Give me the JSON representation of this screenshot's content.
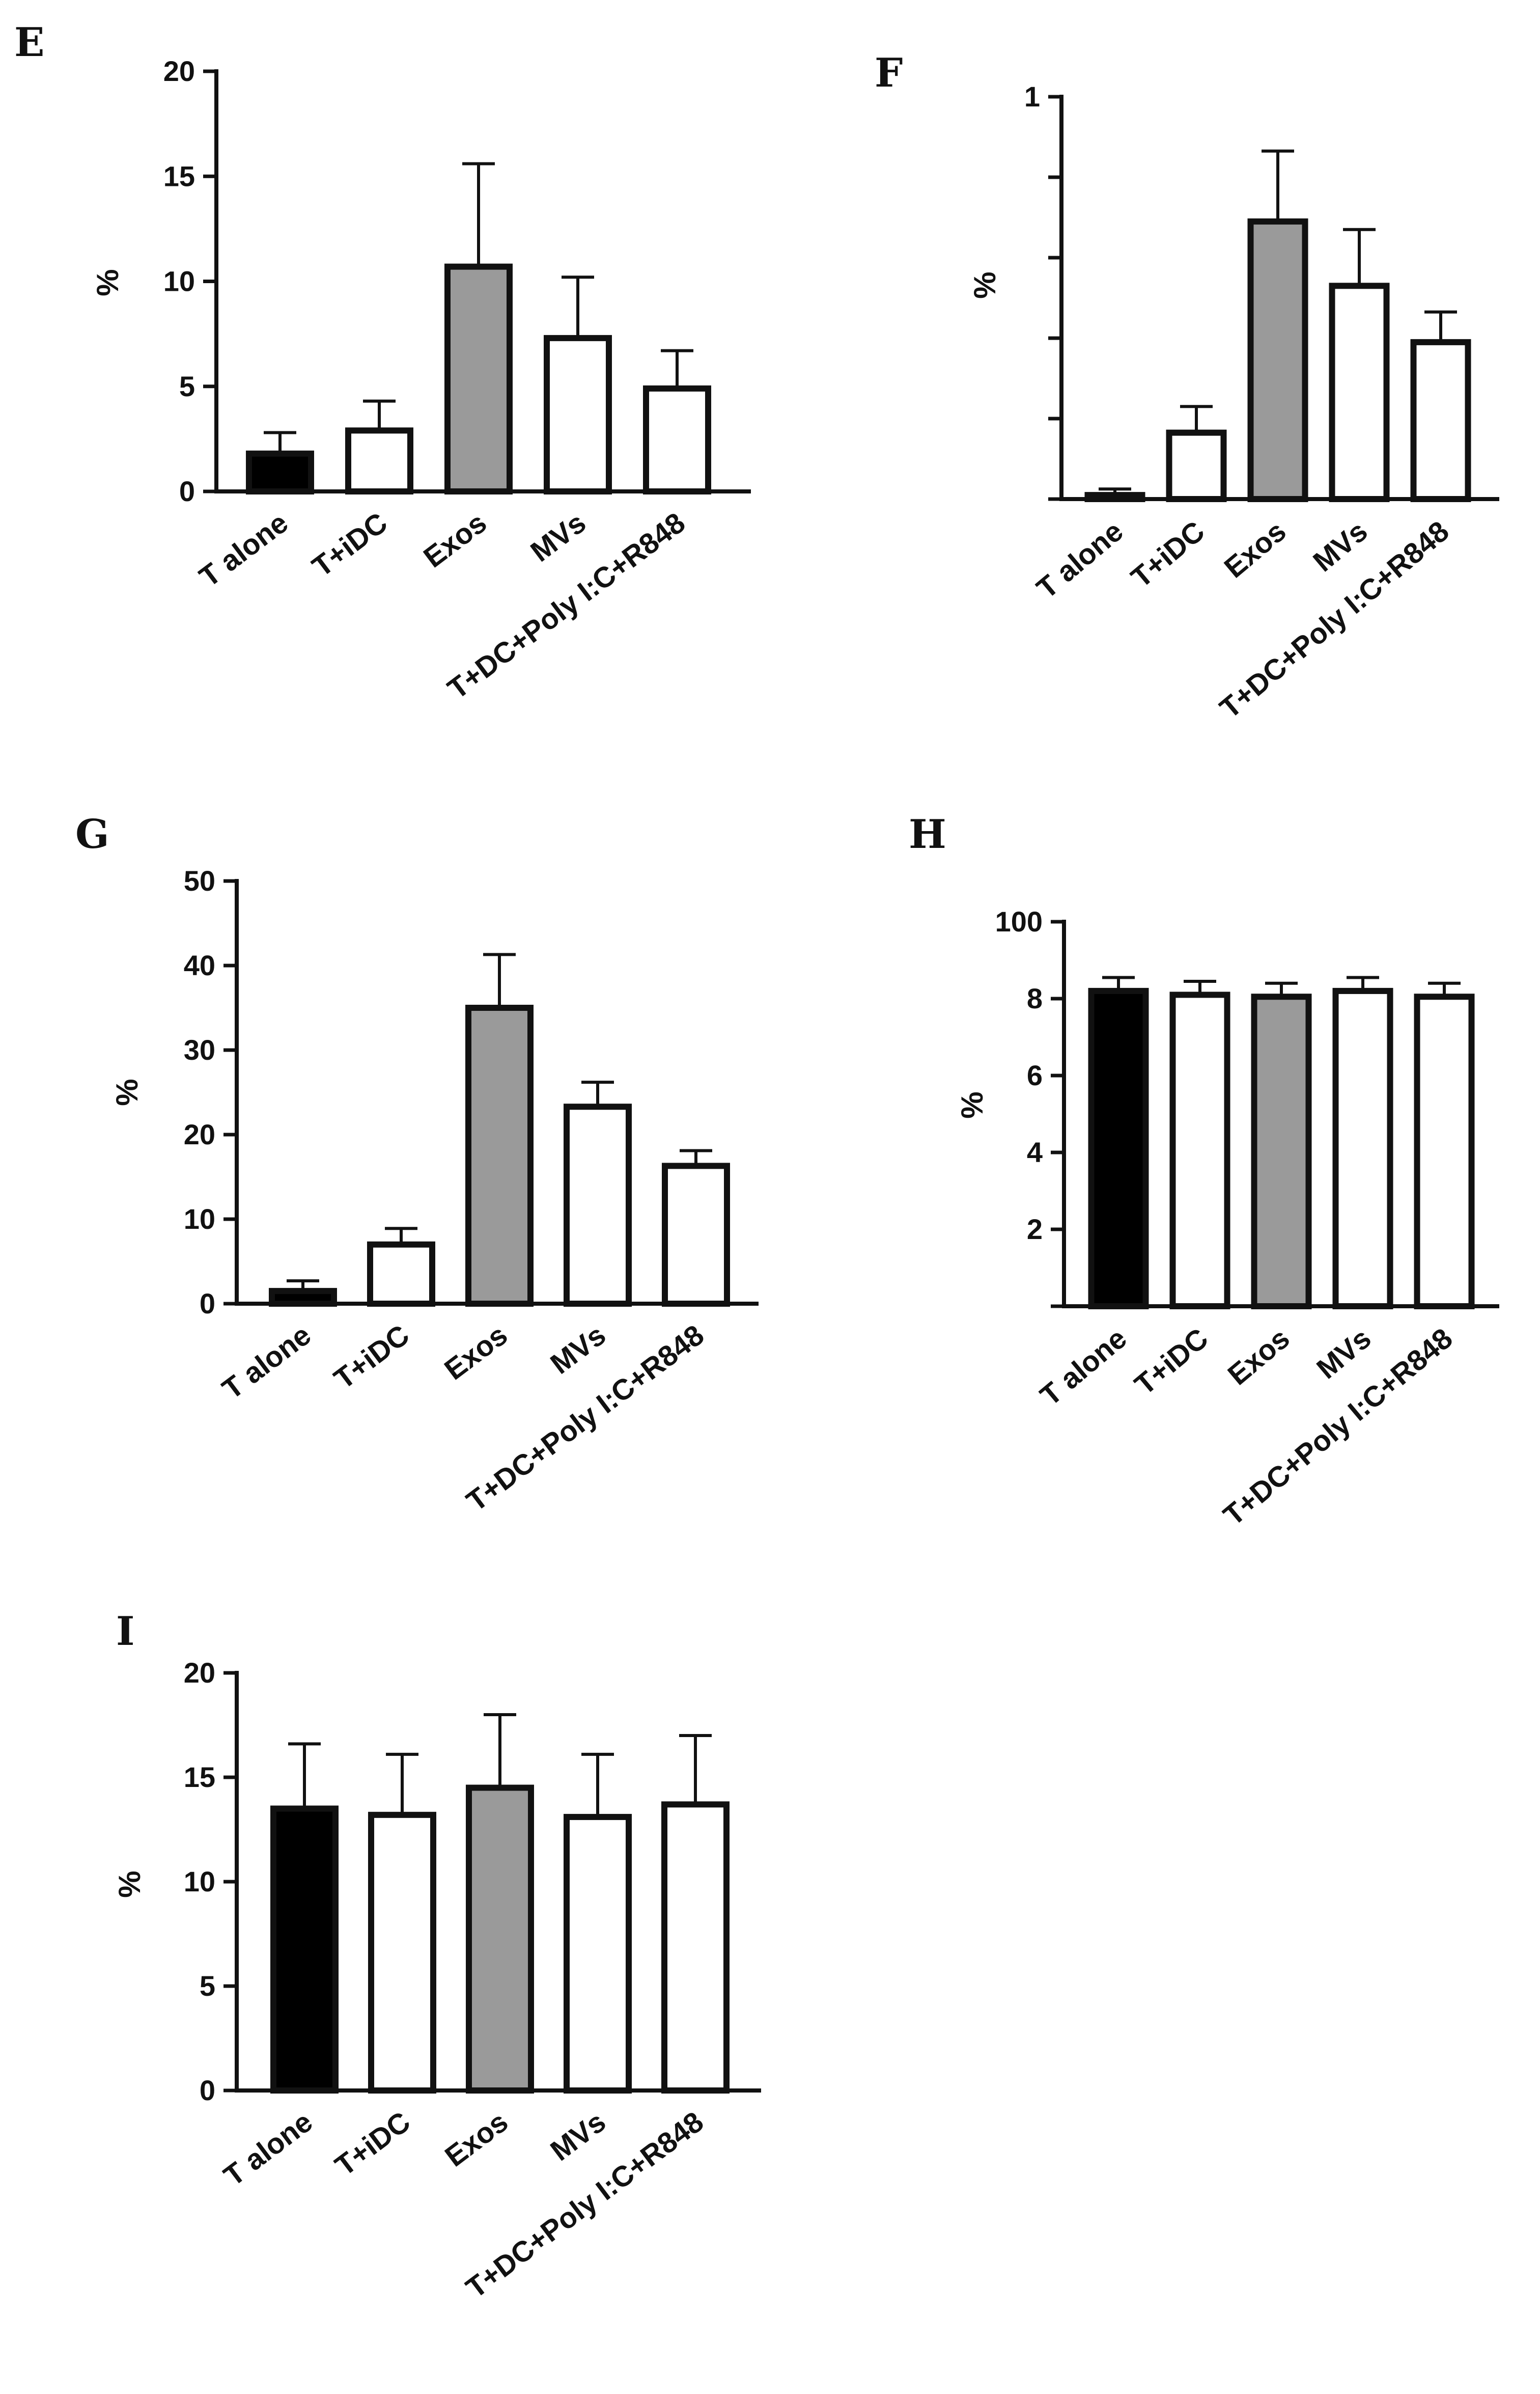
{
  "chart_data": [
    {
      "panel": "E",
      "type": "bar",
      "ylabel": "%",
      "ylim": [
        0,
        20
      ],
      "yticks": [
        "0",
        "5",
        "10",
        "15",
        "20"
      ],
      "categories": [
        "T alone",
        "T+iDC",
        "Exos",
        "MVs",
        "T+DC+Poly I:C+R848"
      ],
      "values": [
        1.8,
        2.9,
        10.7,
        7.3,
        4.9
      ],
      "errors": [
        1.0,
        1.4,
        4.9,
        2.9,
        1.8
      ],
      "fills": [
        "#000000",
        "#ffffff",
        "#9a9a9a",
        "#ffffff",
        "#ffffff"
      ]
    },
    {
      "panel": "F",
      "type": "bar",
      "ylabel": "%",
      "ylim": [
        0,
        1
      ],
      "yticks": [
        "",
        "",
        "",
        "",
        "",
        "1"
      ],
      "categories": [
        "T alone",
        "T+iDC",
        "Exos",
        "MVs",
        "T+DC+Poly I:C+R848"
      ],
      "values": [
        0.01,
        0.165,
        0.69,
        0.53,
        0.39
      ],
      "errors": [
        0.015,
        0.065,
        0.175,
        0.14,
        0.075
      ],
      "fills": [
        "#ffffff",
        "#ffffff",
        "#9a9a9a",
        "#ffffff",
        "#ffffff"
      ]
    },
    {
      "panel": "G",
      "type": "bar",
      "ylabel": "%",
      "ylim": [
        0,
        50
      ],
      "yticks": [
        "0",
        "10",
        "20",
        "30",
        "40",
        "50"
      ],
      "categories": [
        "T alone",
        "T+iDC",
        "Exos",
        "MVs",
        "T+DC+Poly I:C+R848"
      ],
      "values": [
        1.5,
        7.0,
        35.0,
        23.3,
        16.3
      ],
      "errors": [
        1.2,
        1.9,
        6.3,
        2.9,
        1.8
      ],
      "fills": [
        "#000000",
        "#ffffff",
        "#9a9a9a",
        "#ffffff",
        "#ffffff"
      ]
    },
    {
      "panel": "H",
      "type": "bar",
      "ylabel": "%",
      "ylim": [
        0,
        100
      ],
      "yticks": [
        "",
        "2",
        "4",
        "6",
        "8",
        "100"
      ],
      "categories": [
        "T alone",
        "T+iDC",
        "Exos",
        "MVs",
        "T+DC+Poly I:C+R848"
      ],
      "values": [
        82,
        81,
        80.5,
        82,
        80.5
      ],
      "errors": [
        3.5,
        3.5,
        3.5,
        3.5,
        3.5
      ],
      "fills": [
        "#000000",
        "#ffffff",
        "#9a9a9a",
        "#ffffff",
        "#ffffff"
      ]
    },
    {
      "panel": "I",
      "type": "bar",
      "ylabel": "%",
      "ylim": [
        0,
        20
      ],
      "yticks": [
        "0",
        "5",
        "10",
        "15",
        "20"
      ],
      "categories": [
        "T alone",
        "T+iDC",
        "Exos",
        "MVs",
        "T+DC+Poly I:C+R848"
      ],
      "values": [
        13.5,
        13.2,
        14.5,
        13.1,
        13.7
      ],
      "errors": [
        3.1,
        2.9,
        3.5,
        3.0,
        3.3
      ],
      "fills": [
        "#000000",
        "#ffffff",
        "#9a9a9a",
        "#ffffff",
        "#ffffff"
      ]
    }
  ]
}
